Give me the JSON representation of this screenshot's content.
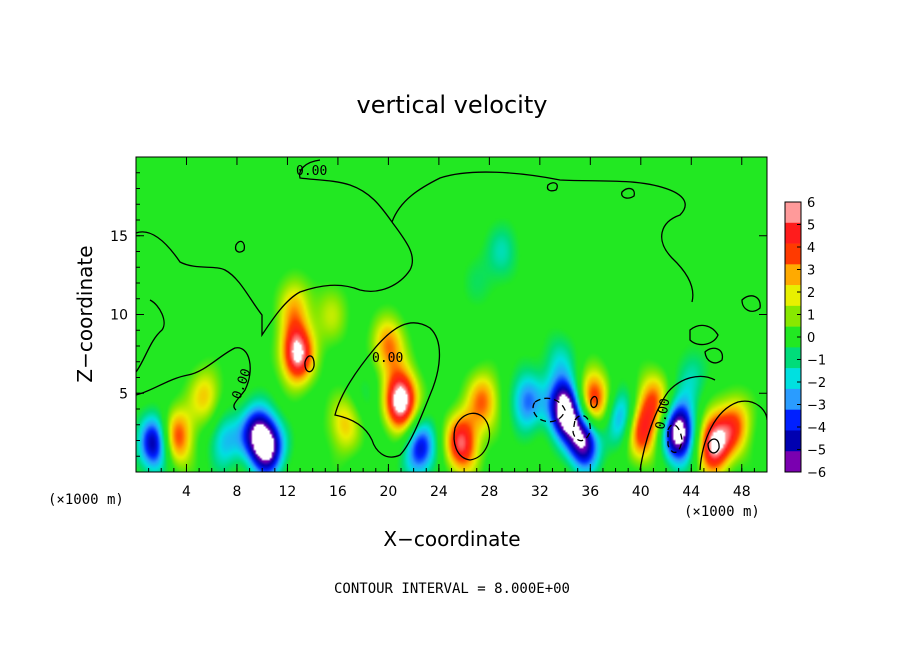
{
  "chart_data": {
    "type": "heatmap",
    "title": "vertical velocity",
    "xlabel": "X−coordinate",
    "ylabel": "Z−coordinate",
    "x_unit_label": "(×1000 m)",
    "z_unit_label": "(×1000 m)",
    "xlim": [
      0,
      50
    ],
    "zlim": [
      0,
      20
    ],
    "x_ticks": [
      "4",
      "8",
      "12",
      "16",
      "20",
      "24",
      "28",
      "32",
      "36",
      "40",
      "44",
      "48"
    ],
    "z_ticks": [
      "5",
      "10",
      "15"
    ],
    "footnote": "CONTOUR INTERVAL = 8.000E+00",
    "contour_labels": [
      "0.00",
      "0.00",
      "0.00",
      "0.00"
    ],
    "colorbar": {
      "labels": [
        "6",
        "5",
        "4",
        "3",
        "2",
        "1",
        "0",
        "−1",
        "−2",
        "−3",
        "−4",
        "−5",
        "−6"
      ],
      "min": -6,
      "max": 6,
      "colors": [
        "#ff9a9a",
        "#ff1c1c",
        "#ff3a00",
        "#ffaa00",
        "#e8f000",
        "#88e800",
        "#22e822",
        "#00dc7a",
        "#00e0e0",
        "#2a9cff",
        "#0020ff",
        "#0000b0",
        "#7a00b0"
      ]
    },
    "features": [
      {
        "x": 1.5,
        "z": 1.8,
        "w": -6
      },
      {
        "x": 3.2,
        "z": 2.2,
        "w": 5
      },
      {
        "x": 5.5,
        "z": 4.8,
        "w": 3
      },
      {
        "x": 7.0,
        "z": 2.0,
        "w": -3
      },
      {
        "x": 9.5,
        "z": 2.5,
        "w": -5
      },
      {
        "x": 10.5,
        "z": 1.5,
        "w": -6
      },
      {
        "x": 12.8,
        "z": 7.5,
        "w": 7
      },
      {
        "x": 12.5,
        "z": 10.5,
        "w": 3
      },
      {
        "x": 15.5,
        "z": 10.0,
        "w": 2
      },
      {
        "x": 16.5,
        "z": 3.0,
        "w": 3
      },
      {
        "x": 18.5,
        "z": 5.0,
        "w": -1
      },
      {
        "x": 21.0,
        "z": 4.5,
        "w": 8
      },
      {
        "x": 20.0,
        "z": 8.0,
        "w": 4
      },
      {
        "x": 22.5,
        "z": 1.5,
        "w": -5
      },
      {
        "x": 25.8,
        "z": 1.8,
        "w": 6
      },
      {
        "x": 27.5,
        "z": 4.5,
        "w": 4
      },
      {
        "x": 29.0,
        "z": 14.0,
        "w": -2
      },
      {
        "x": 27.0,
        "z": 12.0,
        "w": -1
      },
      {
        "x": 31.0,
        "z": 4.5,
        "w": -4
      },
      {
        "x": 34.0,
        "z": 4.0,
        "w": -8
      },
      {
        "x": 35.5,
        "z": 2.0,
        "w": -7
      },
      {
        "x": 36.2,
        "z": 4.5,
        "w": 6
      },
      {
        "x": 33.5,
        "z": 7.0,
        "w": -2
      },
      {
        "x": 38.5,
        "z": 3.5,
        "w": -4
      },
      {
        "x": 40.0,
        "z": 2.5,
        "w": 5
      },
      {
        "x": 41.0,
        "z": 4.5,
        "w": 4
      },
      {
        "x": 43.0,
        "z": 2.5,
        "w": -8
      },
      {
        "x": 45.8,
        "z": 1.8,
        "w": 7
      },
      {
        "x": 47.5,
        "z": 3.0,
        "w": 4
      },
      {
        "x": 44.0,
        "z": 6.0,
        "w": -2
      },
      {
        "x": 37.0,
        "z": 17.0,
        "w": -0.5
      },
      {
        "x": 3.0,
        "z": 16.0,
        "w": -0.5
      }
    ]
  }
}
